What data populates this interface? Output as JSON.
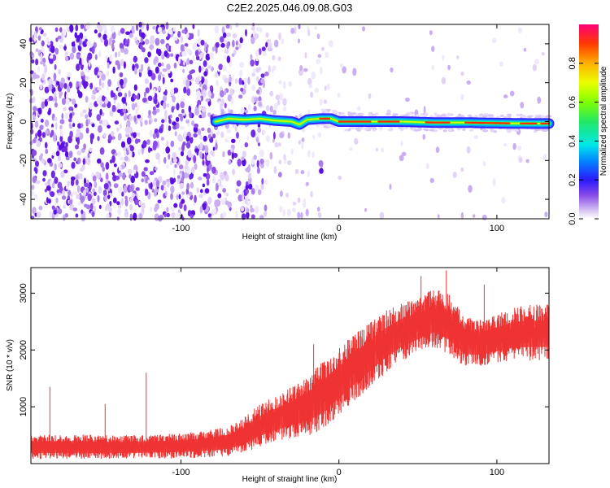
{
  "title": "C2E2.2025.046.09.08.G03",
  "chart_data": [
    {
      "type": "heatmap",
      "xlabel": "Height of straight line (km)",
      "ylabel": "Frequency (Hz)",
      "xlim": [
        -195,
        133
      ],
      "ylim": [
        -50,
        50
      ],
      "xticks": [
        -100,
        0,
        100
      ],
      "yticks": [
        -40,
        -20,
        0,
        20,
        40
      ],
      "colorbar": {
        "label": "Normalized spectral amplitude",
        "range": [
          0.0,
          1.0
        ],
        "ticks": [
          "0.0",
          "0.2",
          "0.4",
          "0.6",
          "0.8"
        ]
      },
      "ridge": [
        {
          "x": -78,
          "y": 0.0
        },
        {
          "x": -70,
          "y": 1.5
        },
        {
          "x": -60,
          "y": 1.0
        },
        {
          "x": -50,
          "y": 1.5
        },
        {
          "x": -40,
          "y": 0.5
        },
        {
          "x": -30,
          "y": 0.0
        },
        {
          "x": -25,
          "y": -1.5
        },
        {
          "x": -20,
          "y": 1.0
        },
        {
          "x": -12,
          "y": 1.5
        },
        {
          "x": -5,
          "y": 1.5
        },
        {
          "x": 0,
          "y": 0.0
        },
        {
          "x": 20,
          "y": 0.0
        },
        {
          "x": 40,
          "y": 0.0
        },
        {
          "x": 60,
          "y": -0.5
        },
        {
          "x": 80,
          "y": -0.5
        },
        {
          "x": 100,
          "y": -0.8
        },
        {
          "x": 120,
          "y": -1.0
        },
        {
          "x": 133,
          "y": -1.0
        }
      ]
    },
    {
      "type": "line",
      "xlabel": "Height of straight line (km)",
      "ylabel": "SNR (10 * v/v)",
      "xlim": [
        -195,
        133
      ],
      "ylim": [
        0,
        3450
      ],
      "xticks": [
        -100,
        0,
        100
      ],
      "yticks": [
        1000,
        2000,
        3000
      ],
      "color": "#ee3333",
      "series_envelope": {
        "x": [
          -195,
          -170,
          -140,
          -110,
          -90,
          -70,
          -60,
          -50,
          -40,
          -30,
          -20,
          -10,
          0,
          10,
          20,
          30,
          40,
          50,
          60,
          70,
          80,
          90,
          100,
          110,
          120,
          133
        ],
        "low": [
          80,
          80,
          80,
          90,
          100,
          130,
          180,
          300,
          380,
          450,
          480,
          600,
          850,
          1100,
          1350,
          1600,
          1800,
          1950,
          2050,
          1900,
          1700,
          1700,
          1750,
          1800,
          1800,
          1800
        ],
        "high": [
          500,
          520,
          500,
          520,
          560,
          650,
          820,
          1050,
          1200,
          1350,
          1550,
          1800,
          2050,
          2300,
          2500,
          2700,
          2850,
          2900,
          3100,
          3000,
          2600,
          2550,
          2650,
          2750,
          2800,
          2800
        ]
      },
      "spikes": [
        {
          "x": -122,
          "y": 1600
        },
        {
          "x": -148,
          "y": 1050
        },
        {
          "x": -183,
          "y": 1350
        },
        {
          "x": -16,
          "y": 2100
        },
        {
          "x": 52,
          "y": 3300
        },
        {
          "x": 68,
          "y": 3400
        },
        {
          "x": 92,
          "y": 3150
        }
      ]
    }
  ]
}
